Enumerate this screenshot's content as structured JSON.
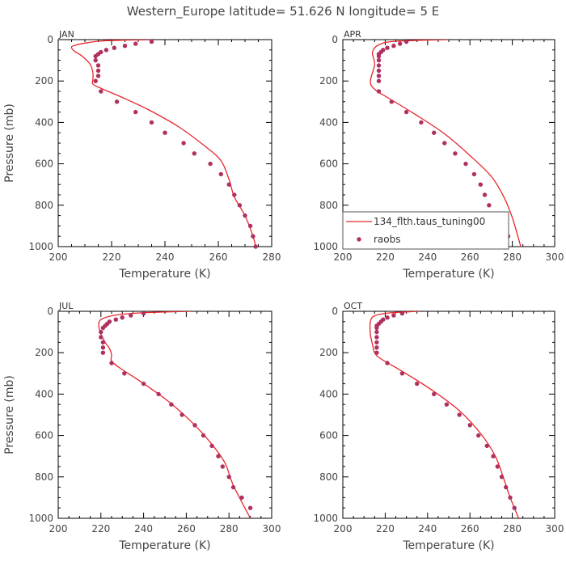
{
  "figure": {
    "title": "Western_Europe  latitude= 51.626 N longitude= 5 E"
  },
  "colors": {
    "model": "#e8262b",
    "obs": "#b03060",
    "frame": "#000000",
    "text": "#444444"
  },
  "legend": {
    "model_label": "134_flth.taus_tuning00",
    "obs_label": "raobs",
    "placement": "lower-right of APR panel"
  },
  "chart_data": [
    {
      "type": "line",
      "panel": "JAN",
      "xlabel": "Temperature (K)",
      "ylabel": "Pressure (mb)",
      "xlim": [
        200,
        280
      ],
      "ylim": [
        1000,
        0
      ],
      "xticks": [
        200,
        220,
        240,
        260,
        280
      ],
      "yticks": [
        0,
        200,
        400,
        600,
        800,
        1000
      ],
      "series": [
        {
          "name": "134_flth.taus_tuning00",
          "kind": "line",
          "points": [
            [
              235,
              0
            ],
            [
              218,
              5
            ],
            [
              211,
              15
            ],
            [
              207,
              25
            ],
            [
              205,
              35
            ],
            [
              206,
              55
            ],
            [
              209,
              80
            ],
            [
              212,
              120
            ],
            [
              213,
              160
            ],
            [
              213,
              190
            ],
            [
              213,
              215
            ],
            [
              216,
              235
            ],
            [
              225,
              285
            ],
            [
              234,
              340
            ],
            [
              245,
              420
            ],
            [
              255,
              515
            ],
            [
              261,
              585
            ],
            [
              264,
              675
            ],
            [
              266,
              760
            ],
            [
              270,
              850
            ],
            [
              273,
              950
            ],
            [
              274,
              1000
            ]
          ]
        },
        {
          "name": "raobs",
          "kind": "scatter",
          "points": [
            [
              235,
              10
            ],
            [
              229,
              20
            ],
            [
              225,
              30
            ],
            [
              221,
              40
            ],
            [
              218,
              50
            ],
            [
              216,
              60
            ],
            [
              215,
              70
            ],
            [
              214,
              80
            ],
            [
              214,
              100
            ],
            [
              215,
              125
            ],
            [
              215,
              150
            ],
            [
              215,
              175
            ],
            [
              214,
              200
            ],
            [
              216,
              250
            ],
            [
              222,
              300
            ],
            [
              229,
              350
            ],
            [
              235,
              400
            ],
            [
              240,
              450
            ],
            [
              247,
              500
            ],
            [
              251,
              550
            ],
            [
              257,
              600
            ],
            [
              261,
              650
            ],
            [
              264,
              700
            ],
            [
              266,
              750
            ],
            [
              268,
              800
            ],
            [
              270,
              850
            ],
            [
              272,
              900
            ],
            [
              273,
              950
            ],
            [
              274,
              1000
            ]
          ]
        }
      ]
    },
    {
      "type": "line",
      "panel": "APR",
      "xlabel": "Temperature (K)",
      "ylabel": "",
      "xlim": [
        200,
        300
      ],
      "ylim": [
        1000,
        0
      ],
      "xticks": [
        200,
        220,
        240,
        260,
        280,
        300
      ],
      "yticks": [
        0,
        200,
        400,
        600,
        800,
        1000
      ],
      "series": [
        {
          "name": "134_flth.taus_tuning00",
          "kind": "line",
          "points": [
            [
              250,
              0
            ],
            [
              225,
              8
            ],
            [
              217,
              25
            ],
            [
              214,
              60
            ],
            [
              215,
              120
            ],
            [
              213,
              200
            ],
            [
              215,
              240
            ],
            [
              222,
              285
            ],
            [
              234,
              360
            ],
            [
              248,
              455
            ],
            [
              260,
              560
            ],
            [
              270,
              660
            ],
            [
              276,
              760
            ],
            [
              280,
              860
            ],
            [
              284,
              1000
            ]
          ]
        },
        {
          "name": "raobs",
          "kind": "scatter",
          "points": [
            [
              230,
              10
            ],
            [
              227,
              20
            ],
            [
              224,
              30
            ],
            [
              221,
              40
            ],
            [
              219,
              50
            ],
            [
              218,
              60
            ],
            [
              217,
              70
            ],
            [
              217,
              80
            ],
            [
              217,
              100
            ],
            [
              217,
              125
            ],
            [
              217,
              150
            ],
            [
              217,
              175
            ],
            [
              217,
              200
            ],
            [
              217,
              250
            ],
            [
              223,
              300
            ],
            [
              230,
              350
            ],
            [
              237,
              400
            ],
            [
              243,
              450
            ],
            [
              248,
              500
            ],
            [
              253,
              550
            ],
            [
              258,
              600
            ],
            [
              262,
              650
            ],
            [
              265,
              700
            ],
            [
              267,
              750
            ],
            [
              269,
              800
            ],
            [
              272,
              850
            ],
            [
              275,
              900
            ],
            [
              278,
              950
            ]
          ]
        }
      ]
    },
    {
      "type": "line",
      "panel": "JUL",
      "xlabel": "Temperature (K)",
      "ylabel": "Pressure (mb)",
      "xlim": [
        200,
        300
      ],
      "ylim": [
        1000,
        0
      ],
      "xticks": [
        200,
        220,
        240,
        260,
        280,
        300
      ],
      "yticks": [
        0,
        200,
        400,
        600,
        800,
        1000
      ],
      "series": [
        {
          "name": "134_flth.taus_tuning00",
          "kind": "line",
          "points": [
            [
              262,
              0
            ],
            [
              238,
              8
            ],
            [
              226,
              20
            ],
            [
              220,
              40
            ],
            [
              219,
              70
            ],
            [
              220,
              110
            ],
            [
              222,
              150
            ],
            [
              224,
              180
            ],
            [
              225,
              210
            ],
            [
              225,
              240
            ],
            [
              229,
              275
            ],
            [
              238,
              335
            ],
            [
              251,
              430
            ],
            [
              262,
              530
            ],
            [
              271,
              630
            ],
            [
              278,
              730
            ],
            [
              282,
              840
            ],
            [
              290,
              1000
            ]
          ]
        },
        {
          "name": "raobs",
          "kind": "scatter",
          "points": [
            [
              240,
              10
            ],
            [
              234,
              20
            ],
            [
              230,
              30
            ],
            [
              227,
              40
            ],
            [
              224,
              50
            ],
            [
              223,
              60
            ],
            [
              222,
              70
            ],
            [
              221,
              80
            ],
            [
              220,
              100
            ],
            [
              220,
              125
            ],
            [
              221,
              150
            ],
            [
              221,
              175
            ],
            [
              221,
              200
            ],
            [
              225,
              250
            ],
            [
              231,
              300
            ],
            [
              240,
              350
            ],
            [
              247,
              400
            ],
            [
              253,
              450
            ],
            [
              258,
              500
            ],
            [
              264,
              550
            ],
            [
              268,
              600
            ],
            [
              272,
              650
            ],
            [
              275,
              700
            ],
            [
              277,
              750
            ],
            [
              280,
              800
            ],
            [
              282,
              850
            ],
            [
              286,
              900
            ],
            [
              290,
              950
            ]
          ]
        }
      ]
    },
    {
      "type": "line",
      "panel": "OCT",
      "xlabel": "Temperature (K)",
      "ylabel": "",
      "xlim": [
        200,
        300
      ],
      "ylim": [
        1000,
        0
      ],
      "xticks": [
        200,
        220,
        240,
        260,
        280,
        300
      ],
      "yticks": [
        0,
        200,
        400,
        600,
        800,
        1000
      ],
      "series": [
        {
          "name": "134_flth.taus_tuning00",
          "kind": "line",
          "points": [
            [
              236,
              0
            ],
            [
              222,
              8
            ],
            [
              215,
              22
            ],
            [
              213,
              50
            ],
            [
              213,
              110
            ],
            [
              214,
              160
            ],
            [
              215,
              200
            ],
            [
              218,
              230
            ],
            [
              228,
              290
            ],
            [
              242,
              380
            ],
            [
              255,
              480
            ],
            [
              265,
              590
            ],
            [
              272,
              700
            ],
            [
              276,
              810
            ],
            [
              279,
              900
            ],
            [
              283,
              1000
            ]
          ]
        },
        {
          "name": "raobs",
          "kind": "scatter",
          "points": [
            [
              228,
              10
            ],
            [
              224,
              20
            ],
            [
              221,
              30
            ],
            [
              219,
              40
            ],
            [
              218,
              50
            ],
            [
              217,
              60
            ],
            [
              216,
              70
            ],
            [
              216,
              80
            ],
            [
              216,
              100
            ],
            [
              216,
              125
            ],
            [
              216,
              150
            ],
            [
              216,
              175
            ],
            [
              216,
              200
            ],
            [
              221,
              250
            ],
            [
              228,
              300
            ],
            [
              235,
              350
            ],
            [
              243,
              400
            ],
            [
              249,
              450
            ],
            [
              255,
              500
            ],
            [
              260,
              550
            ],
            [
              264,
              600
            ],
            [
              268,
              650
            ],
            [
              271,
              700
            ],
            [
              273,
              750
            ],
            [
              275,
              800
            ],
            [
              277,
              850
            ],
            [
              279,
              900
            ],
            [
              281,
              950
            ]
          ]
        }
      ]
    }
  ]
}
